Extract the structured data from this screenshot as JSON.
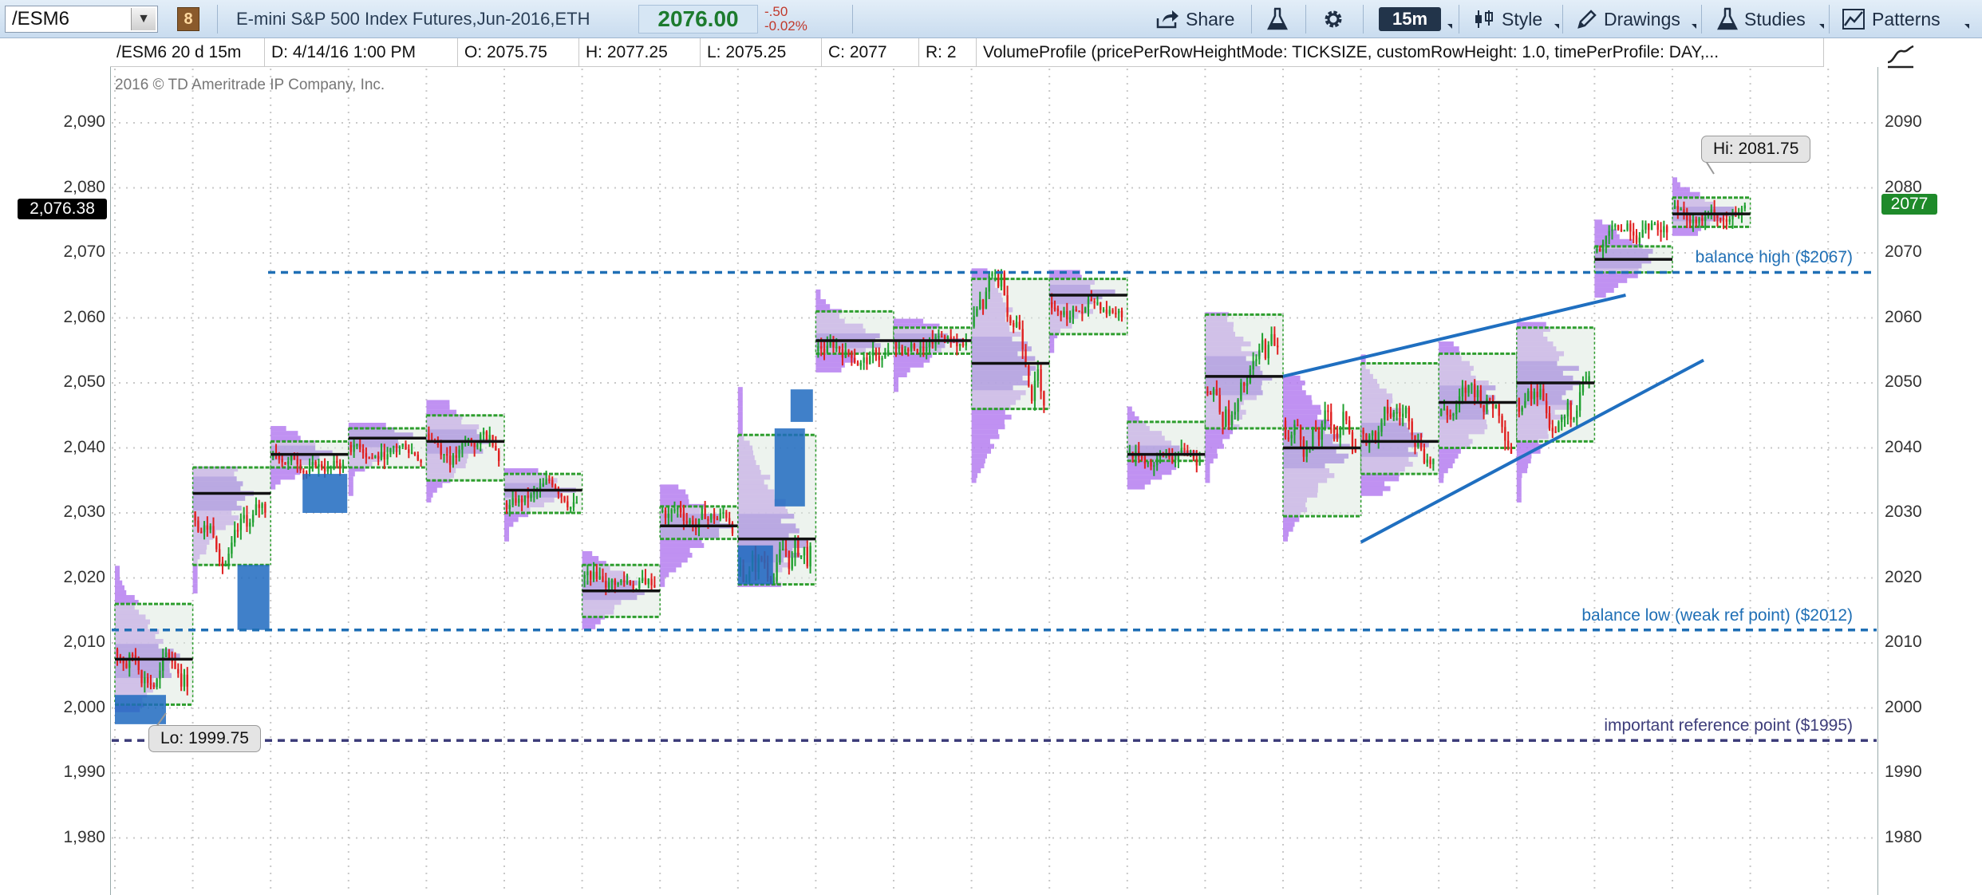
{
  "toolbar": {
    "symbol": "/ESM6",
    "symbol_dropdown_glyph": "▼",
    "link_group": "8",
    "description": "E-mini S&P 500 Index Futures,Jun-2016,ETH",
    "last_price": "2076.00",
    "net_change": "-.50",
    "percent_change": "-0.02%",
    "share_label": "Share",
    "timeframe": "15m",
    "style_label": "Style",
    "drawings_label": "Drawings",
    "studies_label": "Studies",
    "patterns_label": "Patterns",
    "icons": {
      "share": "share-icon",
      "flask": "flask-icon",
      "gear": "gear-icon",
      "style": "candlestick-icon",
      "drawings": "pencil-icon",
      "studies": "flask-icon",
      "patterns": "pattern-icon"
    }
  },
  "infobar": {
    "symbol_period": "/ESM6 20 d 15m",
    "date": "D:  4/14/16 1:00 PM",
    "open": "O:  2075.75",
    "high": "H:  2077.25",
    "low": "L:  2075.25",
    "close": "C:  2077",
    "range": "R:  2",
    "study": "VolumeProfile (pricePerRowHeightMode: TICKSIZE, customRowHeight: 1.0, timePerProfile: DAY,..."
  },
  "chart": {
    "copyright": "2016 © TD Ameritrade IP Company, Inc.",
    "left_axis_labels": [
      "2,090",
      "2,080",
      "2,070",
      "2,060",
      "2,050",
      "2,040",
      "2,030",
      "2,020",
      "2,010",
      "2,000",
      "1,990",
      "1,980"
    ],
    "right_axis_labels": [
      "2090",
      "2080",
      "2070",
      "2060",
      "2050",
      "2040",
      "2030",
      "2020",
      "2010",
      "2000",
      "1990",
      "1980"
    ],
    "cursor_price_tag": "2,076.38",
    "last_price_tag": "2077",
    "hi_callout": "Hi: 2081.75",
    "lo_callout": "Lo: 1999.75",
    "levels": [
      {
        "label": "balance high ($2067)",
        "price": 2067,
        "color": "#1f6fb5"
      },
      {
        "label": "balance low (weak ref point) ($2012)",
        "price": 2012,
        "color": "#1f6fb5"
      },
      {
        "label": "important reference point ($1995)",
        "price": 1995,
        "color": "#3d3d7a"
      }
    ],
    "colors": {
      "profile_fill": "#b57ef0",
      "profile_poc": "#7a3fe0",
      "initial_balance": "#1f6ac0",
      "value_area_line": "#2e9e2e",
      "poc_line": "#111111",
      "candle_up": "#20a030",
      "candle_down": "#e02020",
      "trendline": "#1f6fc0",
      "grid": "#c8c8c8"
    }
  },
  "chart_data": {
    "type": "line",
    "title": "",
    "xlabel": "",
    "ylabel": "",
    "ylim": [
      1975,
      2095
    ],
    "period": "20 d",
    "interval": "15m",
    "sessions": [
      {
        "poc": 2007.5,
        "va_high": 2016,
        "va_low": 2000.5,
        "hi": 2022,
        "lo": 1999.75
      },
      {
        "poc": 2033,
        "va_high": 2037,
        "va_low": 2022,
        "hi": 2037,
        "lo": 2018
      },
      {
        "poc": 2039,
        "va_high": 2041,
        "va_low": 2037,
        "hi": 2043,
        "lo": 2034
      },
      {
        "poc": 2041.5,
        "va_high": 2043,
        "va_low": 2037,
        "hi": 2043.5,
        "lo": 2033
      },
      {
        "poc": 2041,
        "va_high": 2045,
        "va_low": 2035,
        "hi": 2047.5,
        "lo": 2032
      },
      {
        "poc": 2033.5,
        "va_high": 2036,
        "va_low": 2030,
        "hi": 2036.5,
        "lo": 2026
      },
      {
        "poc": 2018,
        "va_high": 2022,
        "va_low": 2014,
        "hi": 2024,
        "lo": 2012.5
      },
      {
        "poc": 2028,
        "va_high": 2031,
        "va_low": 2026,
        "hi": 2034,
        "lo": 2019
      },
      {
        "poc": 2026,
        "va_high": 2042,
        "va_low": 2019,
        "hi": 2049,
        "lo": 2019
      },
      {
        "poc": 2056.5,
        "va_high": 2061,
        "va_low": 2054.5,
        "hi": 2064,
        "lo": 2052
      },
      {
        "poc": 2056.5,
        "va_high": 2058.5,
        "va_low": 2054.5,
        "hi": 2060,
        "lo": 2049
      },
      {
        "poc": 2053,
        "va_high": 2066,
        "va_low": 2046,
        "hi": 2067.5,
        "lo": 2035
      },
      {
        "poc": 2063.5,
        "va_high": 2066,
        "va_low": 2057.5,
        "hi": 2067,
        "lo": 2055
      },
      {
        "poc": 2039,
        "va_high": 2044,
        "va_low": 2038,
        "hi": 2046,
        "lo": 2034
      },
      {
        "poc": 2051,
        "va_high": 2060.5,
        "va_low": 2043,
        "hi": 2060.5,
        "lo": 2035
      },
      {
        "poc": 2040,
        "va_high": 2043,
        "va_low": 2029.5,
        "hi": 2051,
        "lo": 2026
      },
      {
        "poc": 2041,
        "va_high": 2053,
        "va_low": 2036,
        "hi": 2054,
        "lo": 2033
      },
      {
        "poc": 2047,
        "va_high": 2054.5,
        "va_low": 2040,
        "hi": 2056,
        "lo": 2035
      },
      {
        "poc": 2050,
        "va_high": 2058.5,
        "va_low": 2041,
        "hi": 2059,
        "lo": 2032
      },
      {
        "poc": 2069,
        "va_high": 2071,
        "va_low": 2067,
        "hi": 2075,
        "lo": 2063.5
      },
      {
        "poc": 2076,
        "va_high": 2078.5,
        "va_low": 2074,
        "hi": 2081.75,
        "lo": 2073
      }
    ],
    "trendlines": [
      {
        "from": [
          15,
          2051
        ],
        "to": [
          19,
          2063.5
        ]
      },
      {
        "from": [
          16,
          2025.5
        ],
        "to": [
          20,
          2053.5
        ]
      }
    ]
  }
}
